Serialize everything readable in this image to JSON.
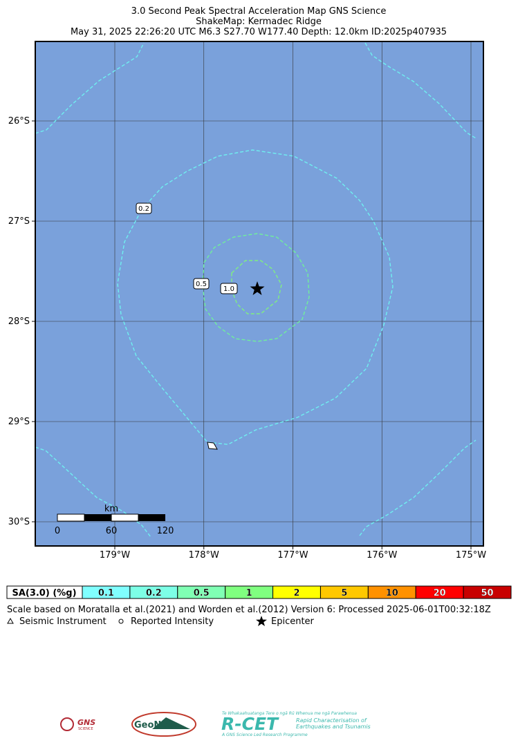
{
  "header": {
    "title": "3.0 Second Peak Spectral Acceleration Map GNS Science",
    "subtitle": "ShakeMap: Kermadec Ridge",
    "event": "May 31, 2025 22:26:20 UTC M6.3 S27.70 W177.40 Depth: 12.0km ID:2025p407935"
  },
  "map": {
    "lon_ticks": [
      {
        "value": -179,
        "label": "179°W"
      },
      {
        "value": -178,
        "label": "178°W"
      },
      {
        "value": -177,
        "label": "177°W"
      },
      {
        "value": -176,
        "label": "176°W"
      },
      {
        "value": -175,
        "label": "175°W"
      }
    ],
    "lat_ticks": [
      {
        "value": -26,
        "label": "26°S"
      },
      {
        "value": -27,
        "label": "27°S"
      },
      {
        "value": -28,
        "label": "28°S"
      },
      {
        "value": -29,
        "label": "29°S"
      },
      {
        "value": -30,
        "label": "30°S"
      }
    ],
    "contour_labels": [
      "0.2",
      "0.5",
      "1.0"
    ],
    "scale_bar": {
      "unit": "km",
      "labels": [
        "0",
        "60",
        "120"
      ]
    }
  },
  "legend": {
    "title": "SA(3.0) (%g)",
    "bins": [
      {
        "label": "0.1",
        "color": "#80ffff"
      },
      {
        "label": "0.2",
        "color": "#7dffe6"
      },
      {
        "label": "0.5",
        "color": "#80ffb4"
      },
      {
        "label": "1",
        "color": "#80ff80"
      },
      {
        "label": "2",
        "color": "#ffff00"
      },
      {
        "label": "5",
        "color": "#ffc800"
      },
      {
        "label": "10",
        "color": "#ff9100"
      },
      {
        "label": "20",
        "color": "#ff0000"
      },
      {
        "label": "50",
        "color": "#c80000"
      }
    ],
    "note": "Scale based on Moratalla et al.(2021) and Worden et al.(2012)   Version 6: Processed 2025-06-01T00:32:18Z",
    "symbols": [
      "Seismic Instrument",
      "Reported Intensity",
      "Epicenter"
    ]
  },
  "logos": {
    "gns": "GNS",
    "gns_sub": "SCIENCE",
    "geonet": "GeoNet",
    "rcet_top": "Te Whakaahuatanga Tere o ngā Rū Whenua me ngā Parawhenua",
    "rcet": "R-CET",
    "rcet_desc1": "Rapid Characterisation of",
    "rcet_desc2": "Earthquakes and Tsunamis",
    "rcet_bottom": "A GNS Science Led Research Programme"
  }
}
